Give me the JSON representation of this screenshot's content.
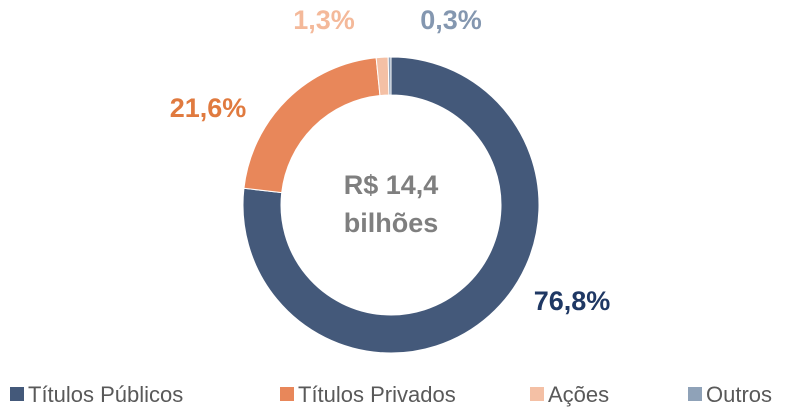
{
  "chart_data": {
    "type": "donut",
    "center_label": [
      "R$ 14,4",
      "bilhões"
    ],
    "categories": [
      "Títulos Públicos",
      "Títulos Privados",
      "Ações",
      "Outros"
    ],
    "values": [
      76.8,
      21.6,
      1.3,
      0.3
    ],
    "value_labels": [
      "76,8%",
      "21,6%",
      "1,3%",
      "0,3%"
    ],
    "colors": [
      "#44597a",
      "#e8875a",
      "#f4c0a5",
      "#8fa2b8"
    ],
    "label_colors": [
      "#1f3864",
      "#e07a3f",
      "#f4b99a",
      "#8497b0"
    ],
    "legend": "bottom"
  }
}
